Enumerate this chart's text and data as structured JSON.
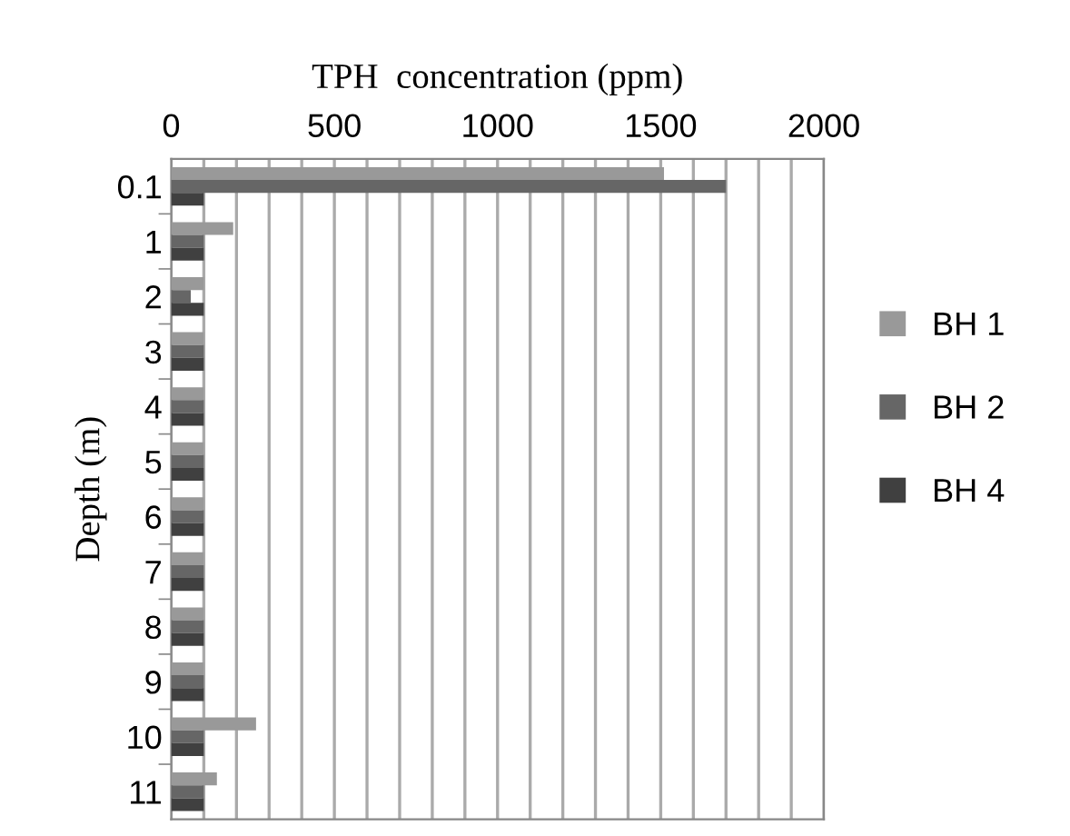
{
  "chart_data": {
    "type": "bar",
    "orientation": "horizontal",
    "xlabel": "TPH  concentration (ppm)",
    "ylabel": "Depth (m)",
    "categories": [
      "0.1",
      "1",
      "2",
      "3",
      "4",
      "5",
      "6",
      "7",
      "8",
      "9",
      "10",
      "11"
    ],
    "series": [
      {
        "name": "BH 1",
        "color": "#999999",
        "values": [
          1510,
          190,
          100,
          100,
          100,
          100,
          100,
          100,
          100,
          100,
          260,
          140
        ]
      },
      {
        "name": "BH 2",
        "color": "#666666",
        "values": [
          1700,
          100,
          60,
          100,
          100,
          100,
          100,
          100,
          100,
          100,
          100,
          100
        ]
      },
      {
        "name": "BH 4",
        "color": "#404040",
        "values": [
          100,
          100,
          100,
          100,
          100,
          100,
          100,
          100,
          100,
          100,
          100,
          100
        ]
      }
    ],
    "xlim": [
      0,
      2000
    ],
    "xticks": [
      0,
      {
        "value": 100,
        "label": null
      },
      {
        "value": 200,
        "label": null
      },
      {
        "value": 300,
        "label": null
      },
      {
        "value": 400,
        "label": null
      },
      500,
      {
        "value": 600,
        "label": null
      },
      {
        "value": 700,
        "label": null
      },
      {
        "value": 800,
        "label": null
      },
      {
        "value": 900,
        "label": null
      },
      1000,
      {
        "value": 1100,
        "label": null
      },
      {
        "value": 1200,
        "label": null
      },
      {
        "value": 1300,
        "label": null
      },
      {
        "value": 1400,
        "label": null
      },
      1500,
      {
        "value": 1600,
        "label": null
      },
      {
        "value": 1700,
        "label": null
      },
      {
        "value": 1800,
        "label": null
      },
      {
        "value": 1900,
        "label": null
      },
      2000
    ],
    "grid": "x",
    "legend": "right"
  }
}
